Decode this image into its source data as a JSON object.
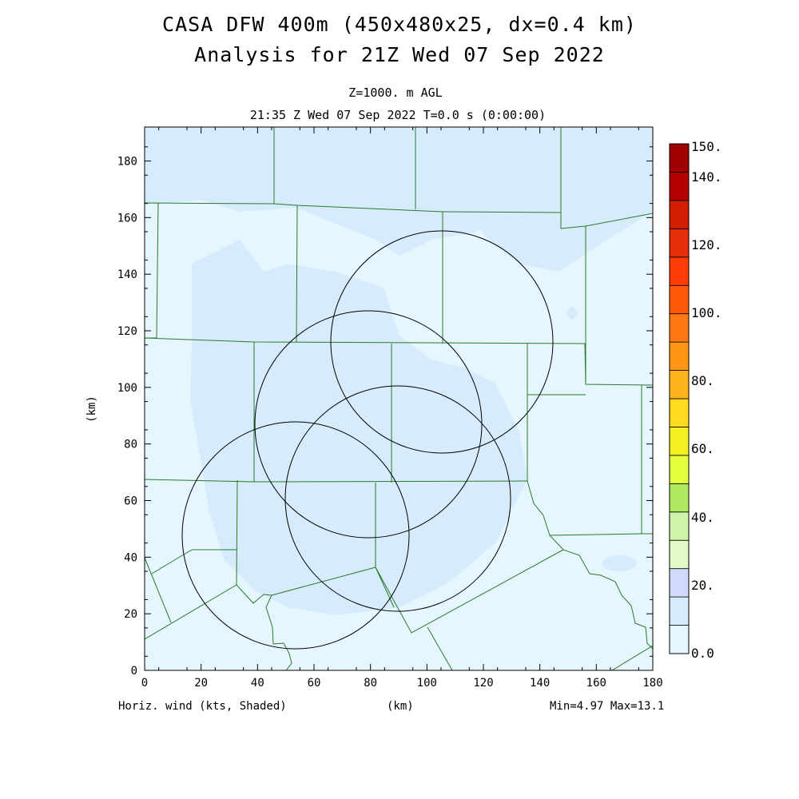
{
  "title": {
    "line1": "CASA DFW 400m (450x480x25, dx=0.4 km)",
    "line2": "Analysis for 21Z Wed 07 Sep 2022"
  },
  "subtitle": {
    "level": "Z=1000. m AGL",
    "time": "21:35 Z Wed 07 Sep 2022   T=0.0 s (0:00:00)"
  },
  "footer": {
    "field": "Horiz. wind (kts, Shaded)",
    "xunit": "(km)",
    "range": "Min=4.97 Max=13.1"
  },
  "axes": {
    "x": {
      "label": "(km)",
      "range": [
        0,
        180
      ],
      "ticks": [
        0,
        20,
        40,
        60,
        80,
        100,
        120,
        140,
        160,
        180
      ]
    },
    "y": {
      "label": "(km)",
      "range": [
        0,
        192
      ],
      "ticks": [
        0,
        20,
        40,
        60,
        80,
        100,
        120,
        140,
        160,
        180
      ]
    }
  },
  "colorbar": {
    "labels": [
      "0.0",
      "20.",
      "40.",
      "60.",
      "80.",
      "100.",
      "120.",
      "140.",
      "150."
    ],
    "colors": [
      "#e6f6ff",
      "#d6ecfc",
      "#d0dafa",
      "#e2fac8",
      "#cdf4a8",
      "#b0e860",
      "#e6ff3c",
      "#f2f020",
      "#ffda20",
      "#ffb41e",
      "#ff9614",
      "#ff7814",
      "#ff5a0a",
      "#ff3c05",
      "#e62d0a",
      "#d21e00",
      "#b40000",
      "#a00000"
    ]
  },
  "field_colors": {
    "light": "#e6f6ff",
    "medium": "#d6ecfc",
    "county_lines": "#2a7a2a",
    "radar_rings": "#000000"
  },
  "radars": [
    {
      "x_km": 106,
      "y_km": 116,
      "range_km": 39
    },
    {
      "x_km": 80,
      "y_km": 87,
      "range_km": 40
    },
    {
      "x_km": 90,
      "y_km": 61,
      "range_km": 40
    },
    {
      "x_km": 53,
      "y_km": 48,
      "range_km": 40
    }
  ]
}
